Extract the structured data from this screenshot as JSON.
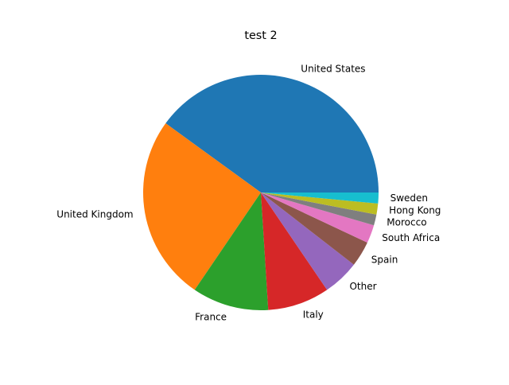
{
  "chart_data": {
    "type": "pie",
    "title": "test 2",
    "start_angle_deg": 0,
    "direction": "counterclockwise",
    "slices": [
      {
        "label": "United States",
        "value": 40.0,
        "color": "#1f77b4"
      },
      {
        "label": "United Kingdom",
        "value": 25.5,
        "color": "#ff7f0e"
      },
      {
        "label": "France",
        "value": 10.5,
        "color": "#2ca02c"
      },
      {
        "label": "Italy",
        "value": 8.5,
        "color": "#d62728"
      },
      {
        "label": "Other",
        "value": 5.0,
        "color": "#9467bd"
      },
      {
        "label": "Spain",
        "value": 3.5,
        "color": "#8c564b"
      },
      {
        "label": "South Africa",
        "value": 2.5,
        "color": "#e377c2"
      },
      {
        "label": "Morocco",
        "value": 1.5,
        "color": "#7f7f7f"
      },
      {
        "label": "Hong Kong",
        "value": 1.5,
        "color": "#bcbd22"
      },
      {
        "label": "Sweden",
        "value": 1.5,
        "color": "#17becf"
      }
    ]
  }
}
